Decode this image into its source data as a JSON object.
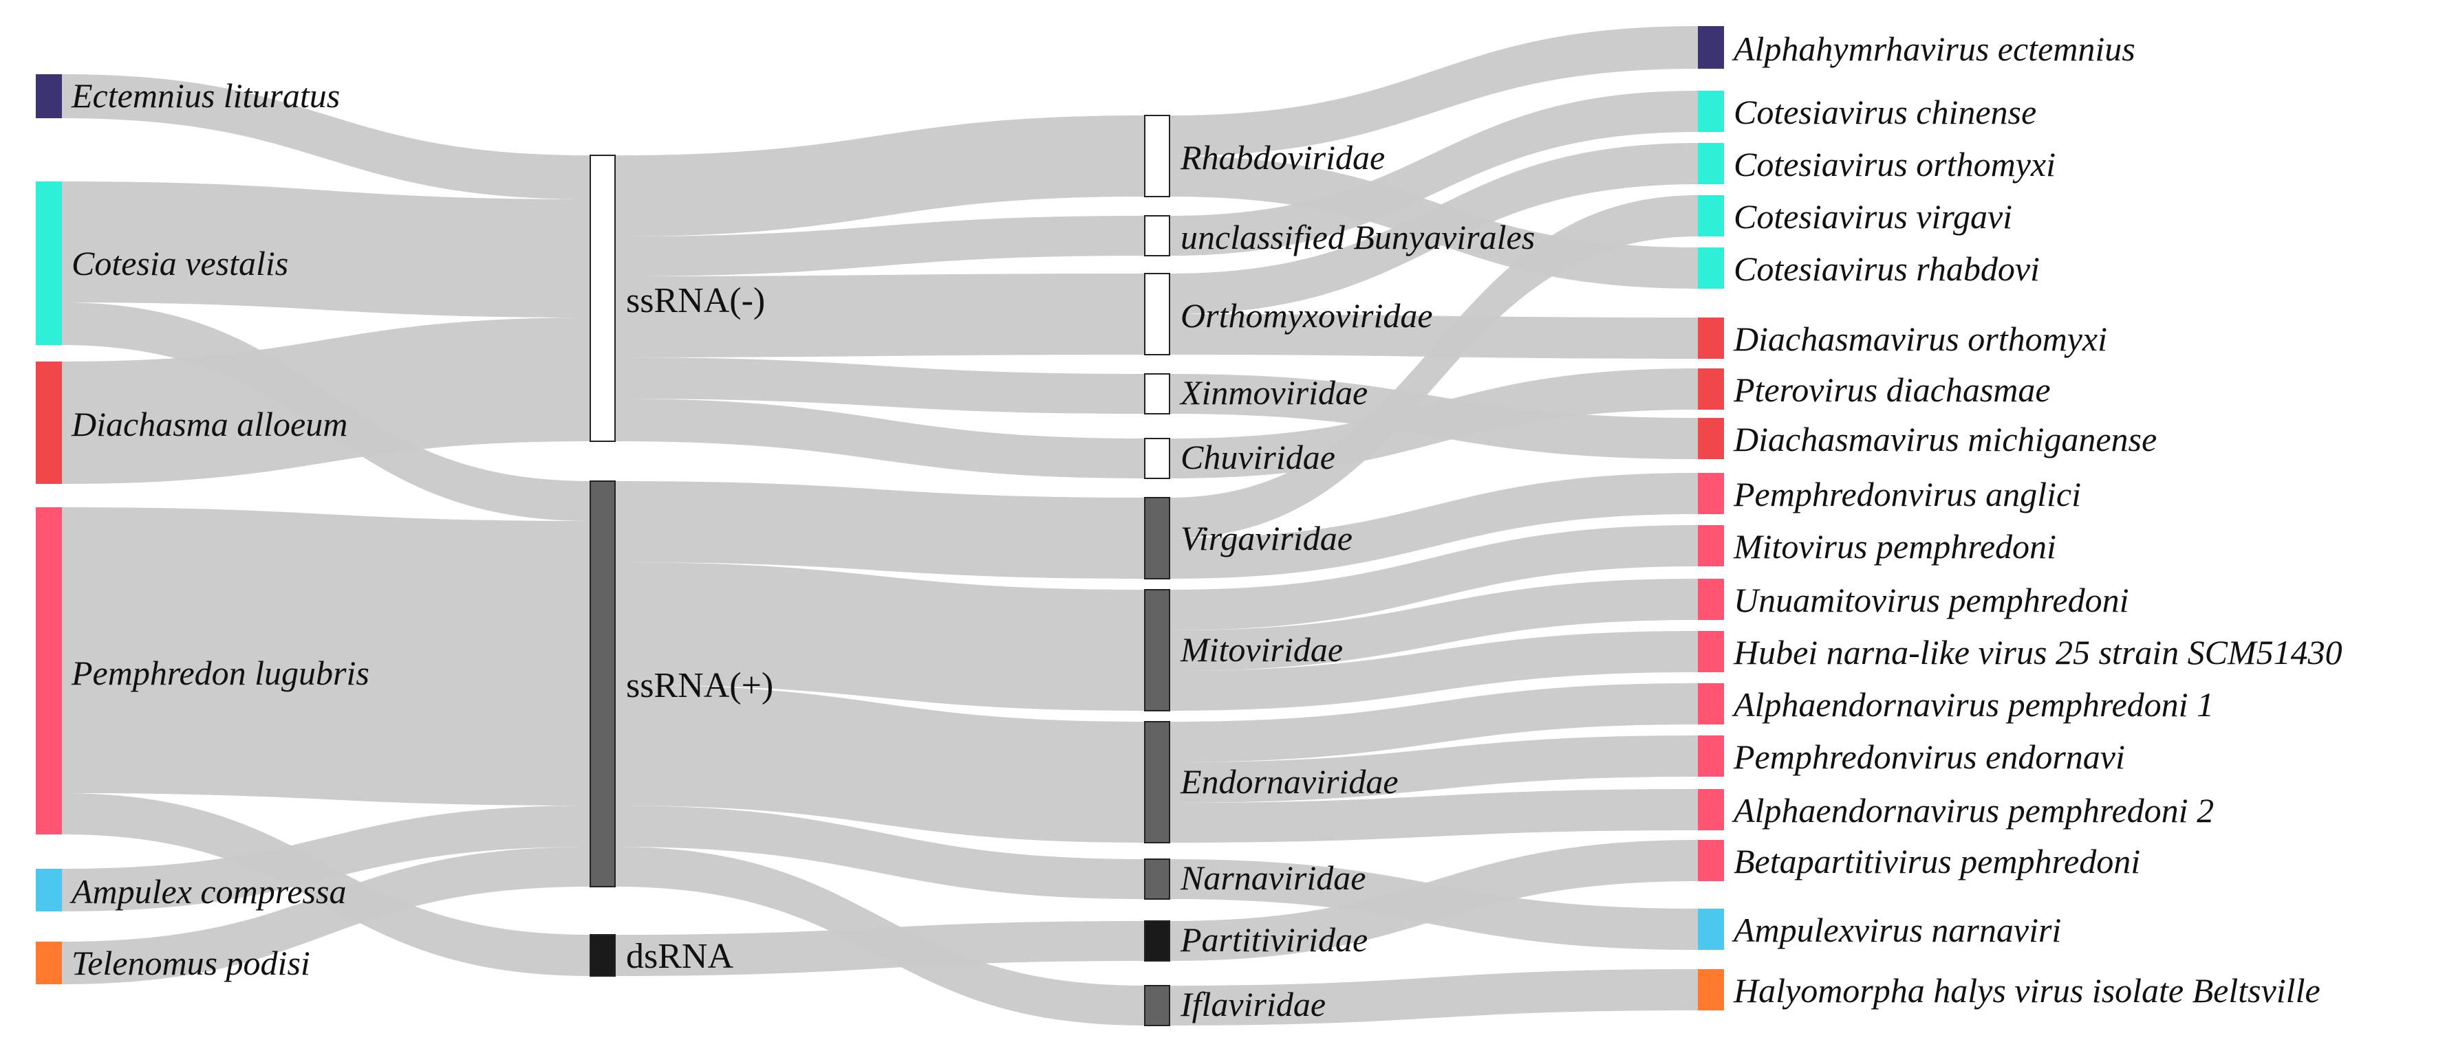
{
  "colors": {
    "link": "#c9c9c9",
    "genome_ssRNA_minus": "#ffffff",
    "genome_ssRNA_plus": "#636363",
    "genome_dsRNA": "#1a1a1a",
    "node_stroke": "#222222"
  },
  "hosts": [
    {
      "id": "ectemnius",
      "label": "Ectemnius lituratus",
      "color": "#3b3372"
    },
    {
      "id": "cotesia",
      "label": "Cotesia vestalis",
      "color": "#2ef0d8"
    },
    {
      "id": "diachasma",
      "label": "Diachasma alloeum",
      "color": "#f0484a"
    },
    {
      "id": "pemphredon",
      "label": "Pemphredon lugubris",
      "color": "#ff5573"
    },
    {
      "id": "ampulex",
      "label": "Ampulex compressa",
      "color": "#4cc7ef"
    },
    {
      "id": "telenomus",
      "label": "Telenomus podisi",
      "color": "#ff7a2e"
    }
  ],
  "genomes": [
    {
      "id": "ssminus",
      "label": "ssRNA(-)",
      "color": "#ffffff"
    },
    {
      "id": "ssplus",
      "label": "ssRNA(+)",
      "color": "#636363"
    },
    {
      "id": "ds",
      "label": "dsRNA",
      "color": "#1a1a1a"
    }
  ],
  "families": [
    {
      "id": "rhabdo",
      "label": "Rhabdoviridae",
      "genome": "ssminus"
    },
    {
      "id": "bunya",
      "label": "unclassified Bunyavirales",
      "genome": "ssminus"
    },
    {
      "id": "orthomyxo",
      "label": "Orthomyxoviridae",
      "genome": "ssminus"
    },
    {
      "id": "xinmo",
      "label": "Xinmoviridae",
      "genome": "ssminus"
    },
    {
      "id": "chu",
      "label": "Chuviridae",
      "genome": "ssminus"
    },
    {
      "id": "virga",
      "label": "Virgaviridae",
      "genome": "ssplus"
    },
    {
      "id": "mito",
      "label": "Mitoviridae",
      "genome": "ssplus"
    },
    {
      "id": "endorna",
      "label": "Endornaviridae",
      "genome": "ssplus"
    },
    {
      "id": "narna",
      "label": "Narnaviridae",
      "genome": "ssplus"
    },
    {
      "id": "partiti",
      "label": "Partitiviridae",
      "genome": "ds"
    },
    {
      "id": "ifla",
      "label": "Iflaviridae",
      "genome": "ssplus"
    }
  ],
  "species": [
    {
      "label": "Alphahymrhavirus ectemnius",
      "host": "ectemnius",
      "family": "rhabdo"
    },
    {
      "label": "Cotesiavirus chinense",
      "host": "cotesia",
      "family": "bunya"
    },
    {
      "label": "Cotesiavirus orthomyxi",
      "host": "cotesia",
      "family": "orthomyxo"
    },
    {
      "label": "Cotesiavirus virgavi",
      "host": "cotesia",
      "family": "virga"
    },
    {
      "label": "Cotesiavirus rhabdovi",
      "host": "cotesia",
      "family": "rhabdo"
    },
    {
      "label": "Diachasmavirus orthomyxi",
      "host": "diachasma",
      "family": "orthomyxo"
    },
    {
      "label": "Pterovirus diachasmae",
      "host": "diachasma",
      "family": "chu"
    },
    {
      "label": "Diachasmavirus michiganense",
      "host": "diachasma",
      "family": "xinmo"
    },
    {
      "label": "Pemphredonvirus anglici",
      "host": "pemphredon",
      "family": "virga"
    },
    {
      "label": "Mitovirus pemphredoni",
      "host": "pemphredon",
      "family": "mito"
    },
    {
      "label": "Unuamitovirus pemphredoni",
      "host": "pemphredon",
      "family": "mito"
    },
    {
      "label": "Hubei narna-like virus 25 strain SCM51430",
      "host": "pemphredon",
      "family": "mito"
    },
    {
      "label": "Alphaendornavirus pemphredoni 1",
      "host": "pemphredon",
      "family": "endorna"
    },
    {
      "label": "Pemphredonvirus endornavi",
      "host": "pemphredon",
      "family": "endorna"
    },
    {
      "label": "Alphaendornavirus pemphredoni 2",
      "host": "pemphredon",
      "family": "endorna"
    },
    {
      "label": "Betapartitivirus pemphredoni",
      "host": "pemphredon",
      "family": "partiti"
    },
    {
      "label": "Ampulexvirus narnaviri",
      "host": "ampulex",
      "family": "narna"
    },
    {
      "label": "Halyomorpha halys virus isolate Beltsville",
      "host": "telenomus",
      "family": "ifla"
    }
  ]
}
